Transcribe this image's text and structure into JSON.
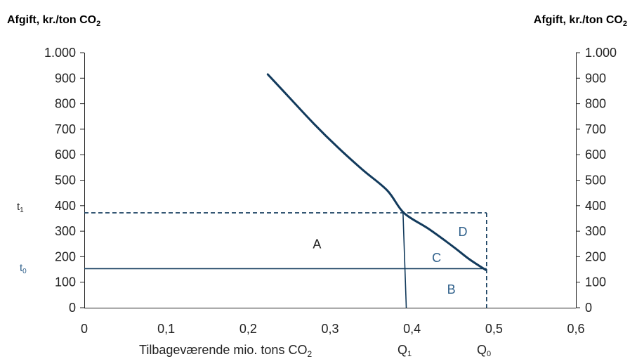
{
  "chart_data": {
    "type": "line",
    "ylabel_left": "Afgift, kr./ton CO",
    "ylabel_left_sub": "2",
    "ylabel_right": "Afgift, kr./ton CO",
    "ylabel_right_sub": "2",
    "xlabel": "Tilbageværende mio. tons CO",
    "xlabel_sub": "2",
    "x_ticks": [
      {
        "value": 0,
        "label": "0"
      },
      {
        "value": 0.1,
        "label": "0,1"
      },
      {
        "value": 0.2,
        "label": "0,2"
      },
      {
        "value": 0.3,
        "label": "0,3"
      },
      {
        "value": 0.4,
        "label": "0,4"
      },
      {
        "value": 0.5,
        "label": "0,5"
      },
      {
        "value": 0.6,
        "label": "0,6"
      }
    ],
    "y_ticks": [
      {
        "value": 0,
        "label": "0"
      },
      {
        "value": 100,
        "label": "100"
      },
      {
        "value": 200,
        "label": "200"
      },
      {
        "value": 300,
        "label": "300"
      },
      {
        "value": 400,
        "label": "400"
      },
      {
        "value": 500,
        "label": "500"
      },
      {
        "value": 600,
        "label": "600"
      },
      {
        "value": 700,
        "label": "700"
      },
      {
        "value": 800,
        "label": "800"
      },
      {
        "value": 900,
        "label": "900"
      },
      {
        "value": 1000,
        "label": "1.000"
      }
    ],
    "xlim": [
      0,
      0.6
    ],
    "ylim": [
      0,
      1000
    ],
    "series": [
      {
        "x": [
          0.224,
          0.25,
          0.28,
          0.31,
          0.34,
          0.37,
          0.39,
          0.42,
          0.45,
          0.47,
          0.49
        ],
        "y": [
          915,
          825,
          722,
          627,
          540,
          459,
          372,
          310,
          240,
          190,
          148
        ],
        "color": "#123a5c"
      }
    ],
    "reference_lines": {
      "t0": {
        "y": 153
      },
      "t1": {
        "y": 372
      },
      "q1": {
        "x": 0.389,
        "x_bottom": 0.393
      },
      "q0": {
        "x": 0.491
      }
    },
    "annotations": {
      "t1": {
        "base": "t",
        "sub": "1"
      },
      "t0": {
        "base": "t",
        "sub": "0"
      },
      "q1": {
        "base": "Q",
        "sub": "1"
      },
      "q0": {
        "base": "Q",
        "sub": "0"
      },
      "areas": [
        {
          "text": "A",
          "x": 0.284,
          "y": 250
        },
        {
          "text": "B",
          "x": 0.448,
          "y": 72
        },
        {
          "text": "C",
          "x": 0.43,
          "y": 196
        },
        {
          "text": "D",
          "x": 0.462,
          "y": 297
        }
      ]
    },
    "grid": false,
    "legend": "none"
  },
  "colors": {
    "curve": "#123a5c",
    "accent_text": "#2e5f8a",
    "axis": "#222222"
  }
}
